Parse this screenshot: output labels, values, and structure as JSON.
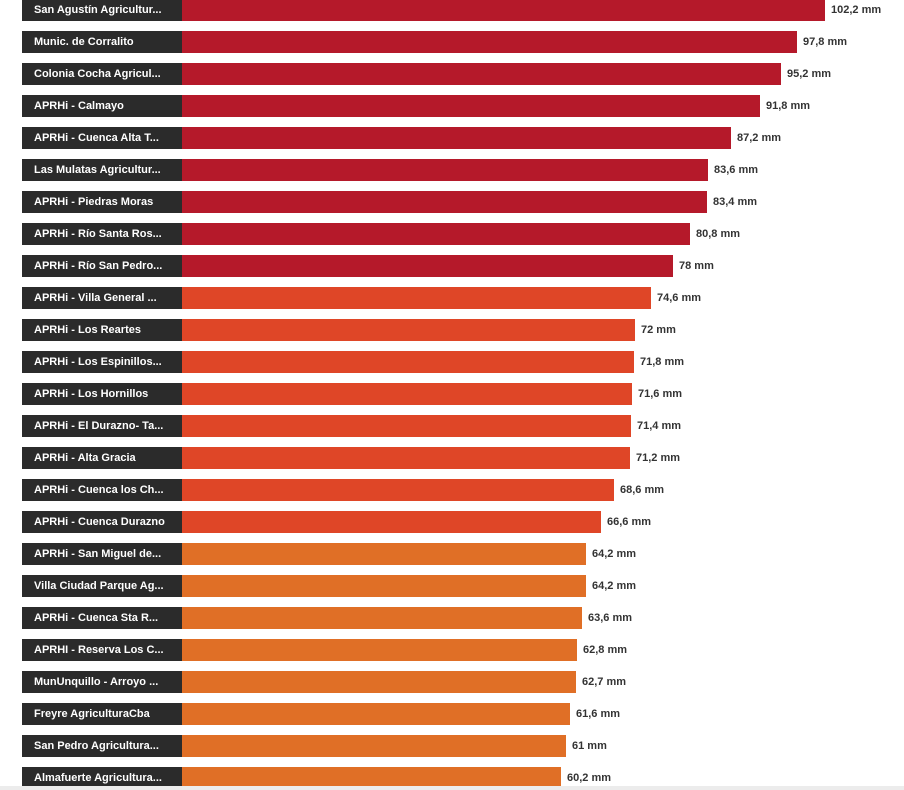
{
  "chart_data": {
    "type": "bar",
    "orientation": "horizontal",
    "unit": "mm",
    "categories": [
      "San Agustín Agricultur...",
      "Munic. de Corralito",
      "Colonia Cocha Agricul...",
      "APRHi - Calmayo",
      "APRHi - Cuenca Alta T...",
      "Las Mulatas Agricultur...",
      "APRHi - Piedras Moras",
      "APRHi - Río Santa Ros...",
      "APRHi - Río San Pedro...",
      "APRHi - Villa General ...",
      "APRHi - Los Reartes",
      "APRHi - Los Espinillos...",
      "APRHi - Los Hornillos",
      "APRHi - El Durazno- Ta...",
      "APRHi - Alta Gracia",
      "APRHi - Cuenca los Ch...",
      "APRHi - Cuenca Durazno",
      "APRHi - San Miguel de...",
      "Villa Ciudad Parque Ag...",
      "APRHi - Cuenca Sta R...",
      "APRHI - Reserva Los C...",
      "MunUnquillo - Arroyo ...",
      "Freyre AgriculturaCba",
      "San Pedro Agricultura...",
      "Almafuerte Agricultura..."
    ],
    "values": [
      102.2,
      97.8,
      95.2,
      91.8,
      87.2,
      83.6,
      83.4,
      80.8,
      78,
      74.6,
      72,
      71.8,
      71.6,
      71.4,
      71.2,
      68.6,
      66.6,
      64.2,
      64.2,
      63.6,
      62.8,
      62.7,
      61.6,
      61,
      60.2
    ],
    "value_labels": [
      "102,2 mm",
      "97,8 mm",
      "95,2 mm",
      "91,8 mm",
      "87,2 mm",
      "83,6 mm",
      "83,4 mm",
      "80,8 mm",
      "78 mm",
      "74,6 mm",
      "72 mm",
      "71,8 mm",
      "71,6 mm",
      "71,4 mm",
      "71,2 mm",
      "68,6 mm",
      "66,6 mm",
      "64,2 mm",
      "64,2 mm",
      "63,6 mm",
      "62,8 mm",
      "62,7 mm",
      "61,6 mm",
      "61 mm",
      "60,2 mm"
    ],
    "color_scale": [
      {
        "min": 75,
        "color": "#b5192a"
      },
      {
        "min": 65,
        "color": "#df4627"
      },
      {
        "min": 0,
        "color": "#e06f26"
      }
    ],
    "xlim": [
      0,
      102.2
    ],
    "grid": false,
    "title": "",
    "xlabel": "",
    "ylabel": ""
  }
}
